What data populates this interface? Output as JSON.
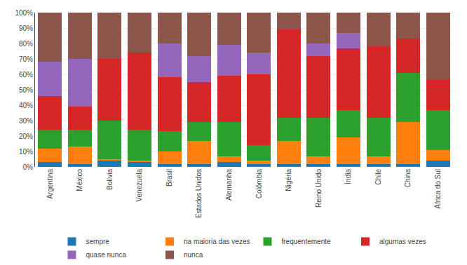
{
  "chart_data": {
    "type": "bar",
    "stacked": true,
    "categories": [
      "Argentina",
      "México",
      "Bolívia",
      "Venezuela",
      "Brasil",
      "Estados Unidos",
      "Alemanha",
      "Colômbia",
      "Nigéria",
      "Reino Unido",
      "Índia",
      "Chile",
      "China",
      "África do Sul"
    ],
    "series": [
      {
        "name": "sempre",
        "values": [
          3,
          2,
          4,
          3,
          2,
          2,
          3,
          2,
          2,
          2,
          2,
          2,
          2,
          4
        ]
      },
      {
        "name": "na maioria das vezes",
        "values": [
          9,
          11,
          1,
          1,
          8,
          15,
          4,
          2,
          15,
          5,
          17,
          5,
          27,
          7
        ]
      },
      {
        "name": "frequentemente",
        "values": [
          12,
          11,
          25,
          20,
          13,
          12,
          22,
          10,
          15,
          25,
          18,
          25,
          32,
          26
        ]
      },
      {
        "name": "algumas vezes",
        "values": [
          22,
          15,
          40,
          50,
          35,
          26,
          30,
          46,
          57,
          40,
          40,
          46,
          22,
          20
        ]
      },
      {
        "name": "quase nunca",
        "values": [
          22,
          31,
          0,
          0,
          22,
          17,
          20,
          14,
          0,
          8,
          10,
          0,
          0,
          0
        ]
      },
      {
        "name": "nunca",
        "values": [
          32,
          30,
          30,
          26,
          20,
          28,
          21,
          26,
          11,
          20,
          13,
          22,
          17,
          43
        ]
      }
    ],
    "ylim": [
      0,
      100
    ],
    "yticks": [
      {
        "value": 0,
        "label": "0%"
      },
      {
        "value": 10,
        "label": "10%"
      },
      {
        "value": 20,
        "label": "20%"
      },
      {
        "value": 30,
        "label": "30%"
      },
      {
        "value": 40,
        "label": "40%"
      },
      {
        "value": 50,
        "label": "50%"
      },
      {
        "value": 60,
        "label": "60%"
      },
      {
        "value": 70,
        "label": "70%"
      },
      {
        "value": 80,
        "label": "80%"
      },
      {
        "value": 90,
        "label": "90%"
      },
      {
        "value": 100,
        "label": "100%"
      }
    ],
    "grid": true,
    "legend": "bottom"
  }
}
